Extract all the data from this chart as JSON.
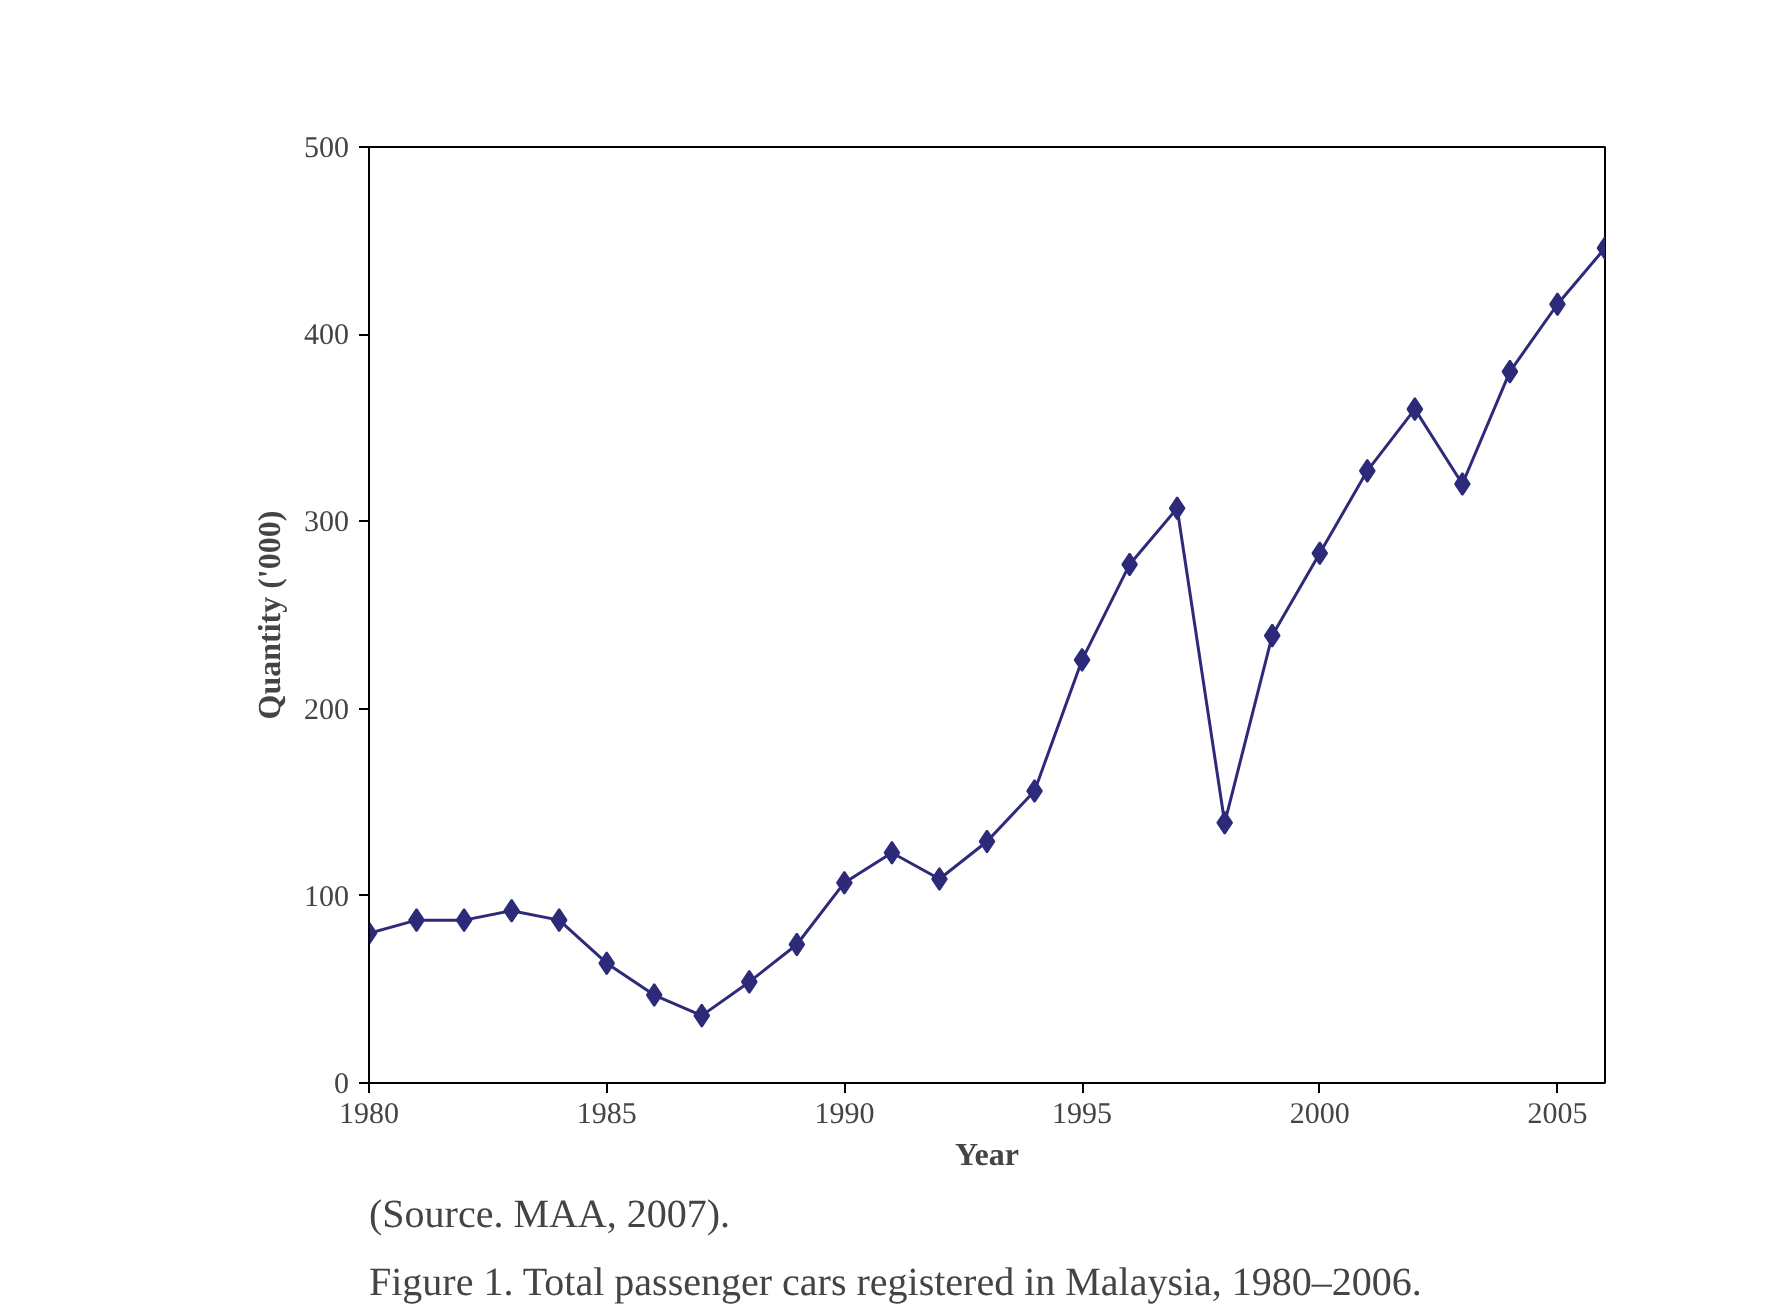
{
  "chart_data": {
    "type": "line",
    "xlabel": "Year",
    "ylabel": "Quantity ('000)",
    "x": [
      1980,
      1981,
      1982,
      1983,
      1984,
      1985,
      1986,
      1987,
      1988,
      1989,
      1990,
      1991,
      1992,
      1993,
      1994,
      1995,
      1996,
      1997,
      1998,
      1999,
      2000,
      2001,
      2002,
      2003,
      2004,
      2005,
      2006
    ],
    "series": [
      {
        "color": "#2e2a7a",
        "values": [
          80,
          87,
          87,
          92,
          87,
          64,
          47,
          36,
          54,
          74,
          107,
          123,
          109,
          129,
          156,
          226,
          277,
          307,
          139,
          239,
          283,
          327,
          360,
          320,
          380,
          416,
          446
        ]
      }
    ],
    "xlim": [
      1980,
      2006
    ],
    "xticks": [
      1980,
      1985,
      1990,
      1995,
      2000,
      2005
    ],
    "ylim": [
      0,
      500
    ],
    "yticks": [
      0,
      100,
      200,
      300,
      400,
      500
    ],
    "marker": "diamond",
    "line_style": "solid",
    "grid": false,
    "annotations": [
      "(Source. MAA, 2007).",
      "Figure 1. Total passenger cars registered in Malaysia, 1980–2006."
    ]
  }
}
